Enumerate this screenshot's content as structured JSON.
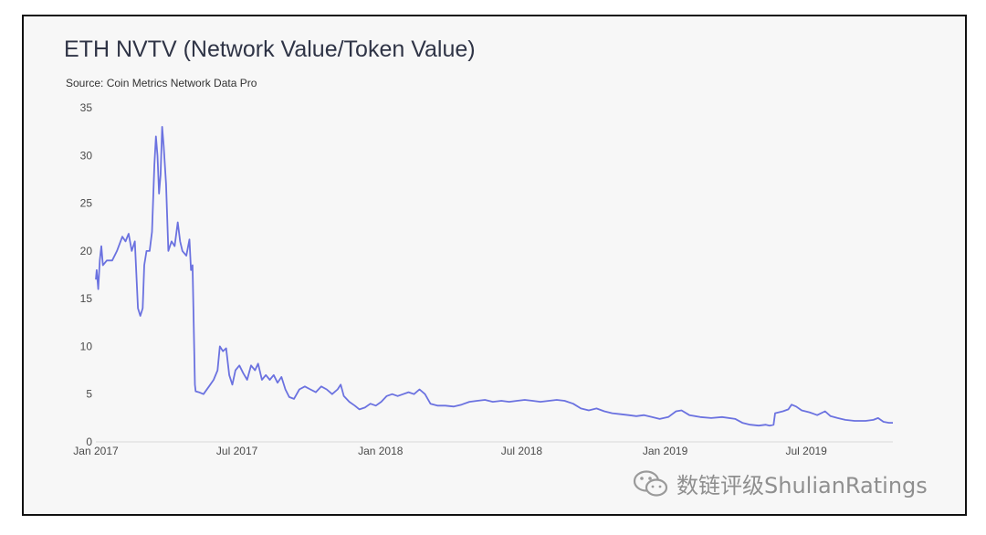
{
  "title": "ETH NVTV (Network Value/Token Value)",
  "source": "Source: Coin Metrics Network Data Pro",
  "watermark": "数链评级ShulianRatings",
  "colors": {
    "line": "#6b72e0",
    "axis": "#d8d8d8",
    "text": "#2f3446"
  },
  "icons": {
    "watermark": "wechat-icon"
  },
  "chart_data": {
    "type": "line",
    "title": "ETH NVTV (Network Value/Token Value)",
    "xlabel": "",
    "ylabel": "",
    "ylim": [
      0,
      35
    ],
    "xlim": [
      "2017-01-01",
      "2019-10-20"
    ],
    "y_ticks": [
      0,
      5,
      10,
      15,
      20,
      25,
      30,
      35
    ],
    "x_ticks": [
      {
        "date": "2017-01-01",
        "label": "Jan 2017"
      },
      {
        "date": "2017-07-01",
        "label": "Jul 2017"
      },
      {
        "date": "2018-01-01",
        "label": "Jan 2018"
      },
      {
        "date": "2018-07-01",
        "label": "Jul 2018"
      },
      {
        "date": "2019-01-01",
        "label": "Jan 2019"
      },
      {
        "date": "2019-07-01",
        "label": "Jul 2019"
      }
    ],
    "grid": false,
    "series": [
      {
        "color": "#6b72e0",
        "points": [
          [
            "2017-01-01",
            17
          ],
          [
            "2017-01-02",
            18
          ],
          [
            "2017-01-04",
            16
          ],
          [
            "2017-01-06",
            19
          ],
          [
            "2017-01-08",
            20.5
          ],
          [
            "2017-01-10",
            18.5
          ],
          [
            "2017-01-15",
            19
          ],
          [
            "2017-01-22",
            19
          ],
          [
            "2017-01-28",
            20
          ],
          [
            "2017-02-04",
            21.5
          ],
          [
            "2017-02-08",
            21
          ],
          [
            "2017-02-12",
            21.8
          ],
          [
            "2017-02-16",
            20
          ],
          [
            "2017-02-20",
            21
          ],
          [
            "2017-02-24",
            14
          ],
          [
            "2017-02-27",
            13.2
          ],
          [
            "2017-03-02",
            14
          ],
          [
            "2017-03-04",
            18.5
          ],
          [
            "2017-03-07",
            20
          ],
          [
            "2017-03-11",
            20
          ],
          [
            "2017-03-14",
            22
          ],
          [
            "2017-03-17",
            29
          ],
          [
            "2017-03-19",
            32
          ],
          [
            "2017-03-21",
            30
          ],
          [
            "2017-03-23",
            26
          ],
          [
            "2017-03-25",
            28
          ],
          [
            "2017-03-27",
            33
          ],
          [
            "2017-03-29",
            31
          ],
          [
            "2017-04-01",
            27
          ],
          [
            "2017-04-04",
            20
          ],
          [
            "2017-04-08",
            21
          ],
          [
            "2017-04-12",
            20.5
          ],
          [
            "2017-04-16",
            23
          ],
          [
            "2017-04-19",
            21
          ],
          [
            "2017-04-22",
            20
          ],
          [
            "2017-04-27",
            19.5
          ],
          [
            "2017-05-01",
            21.2
          ],
          [
            "2017-05-03",
            18
          ],
          [
            "2017-05-05",
            18.5
          ],
          [
            "2017-05-08",
            6
          ],
          [
            "2017-05-09",
            5.3
          ],
          [
            "2017-05-13",
            5.2
          ],
          [
            "2017-05-19",
            5.0
          ],
          [
            "2017-05-26",
            5.8
          ],
          [
            "2017-06-01",
            6.5
          ],
          [
            "2017-06-06",
            7.5
          ],
          [
            "2017-06-09",
            10
          ],
          [
            "2017-06-13",
            9.5
          ],
          [
            "2017-06-17",
            9.8
          ],
          [
            "2017-06-21",
            7
          ],
          [
            "2017-06-25",
            6
          ],
          [
            "2017-06-29",
            7.5
          ],
          [
            "2017-07-04",
            8
          ],
          [
            "2017-07-09",
            7.2
          ],
          [
            "2017-07-14",
            6.5
          ],
          [
            "2017-07-19",
            8
          ],
          [
            "2017-07-24",
            7.5
          ],
          [
            "2017-07-28",
            8.2
          ],
          [
            "2017-08-02",
            6.5
          ],
          [
            "2017-08-07",
            7
          ],
          [
            "2017-08-12",
            6.5
          ],
          [
            "2017-08-17",
            7
          ],
          [
            "2017-08-22",
            6.2
          ],
          [
            "2017-08-27",
            6.8
          ],
          [
            "2017-09-01",
            5.5
          ],
          [
            "2017-09-06",
            4.7
          ],
          [
            "2017-09-12",
            4.5
          ],
          [
            "2017-09-19",
            5.5
          ],
          [
            "2017-09-26",
            5.8
          ],
          [
            "2017-10-03",
            5.5
          ],
          [
            "2017-10-10",
            5.2
          ],
          [
            "2017-10-17",
            5.8
          ],
          [
            "2017-10-24",
            5.5
          ],
          [
            "2017-10-31",
            5.0
          ],
          [
            "2017-11-07",
            5.5
          ],
          [
            "2017-11-11",
            6
          ],
          [
            "2017-11-15",
            4.8
          ],
          [
            "2017-11-22",
            4.2
          ],
          [
            "2017-11-29",
            3.8
          ],
          [
            "2017-12-05",
            3.4
          ],
          [
            "2017-12-12",
            3.6
          ],
          [
            "2017-12-19",
            4.0
          ],
          [
            "2017-12-26",
            3.8
          ],
          [
            "2018-01-02",
            4.2
          ],
          [
            "2018-01-09",
            4.8
          ],
          [
            "2018-01-16",
            5
          ],
          [
            "2018-01-23",
            4.8
          ],
          [
            "2018-01-30",
            5.0
          ],
          [
            "2018-02-06",
            5.2
          ],
          [
            "2018-02-13",
            5.0
          ],
          [
            "2018-02-20",
            5.5
          ],
          [
            "2018-02-27",
            5.0
          ],
          [
            "2018-03-06",
            4
          ],
          [
            "2018-03-15",
            3.8
          ],
          [
            "2018-03-25",
            3.8
          ],
          [
            "2018-04-05",
            3.7
          ],
          [
            "2018-04-15",
            3.9
          ],
          [
            "2018-04-25",
            4.2
          ],
          [
            "2018-05-05",
            4.3
          ],
          [
            "2018-05-15",
            4.4
          ],
          [
            "2018-05-25",
            4.2
          ],
          [
            "2018-06-05",
            4.3
          ],
          [
            "2018-06-15",
            4.2
          ],
          [
            "2018-06-25",
            4.3
          ],
          [
            "2018-07-05",
            4.4
          ],
          [
            "2018-07-15",
            4.3
          ],
          [
            "2018-07-25",
            4.2
          ],
          [
            "2018-08-05",
            4.3
          ],
          [
            "2018-08-15",
            4.4
          ],
          [
            "2018-08-25",
            4.3
          ],
          [
            "2018-09-05",
            4.0
          ],
          [
            "2018-09-15",
            3.5
          ],
          [
            "2018-09-25",
            3.3
          ],
          [
            "2018-10-05",
            3.5
          ],
          [
            "2018-10-15",
            3.2
          ],
          [
            "2018-10-25",
            3.0
          ],
          [
            "2018-11-05",
            2.9
          ],
          [
            "2018-11-15",
            2.8
          ],
          [
            "2018-11-25",
            2.7
          ],
          [
            "2018-12-05",
            2.8
          ],
          [
            "2018-12-15",
            2.6
          ],
          [
            "2018-12-25",
            2.4
          ],
          [
            "2019-01-05",
            2.6
          ],
          [
            "2019-01-15",
            3.2
          ],
          [
            "2019-01-22",
            3.3
          ],
          [
            "2019-02-01",
            2.8
          ],
          [
            "2019-02-15",
            2.6
          ],
          [
            "2019-03-01",
            2.5
          ],
          [
            "2019-03-15",
            2.6
          ],
          [
            "2019-04-01",
            2.4
          ],
          [
            "2019-04-10",
            2.0
          ],
          [
            "2019-04-20",
            1.8
          ],
          [
            "2019-05-01",
            1.7
          ],
          [
            "2019-05-10",
            1.8
          ],
          [
            "2019-05-15",
            1.7
          ],
          [
            "2019-05-20",
            1.8
          ],
          [
            "2019-05-22",
            3.0
          ],
          [
            "2019-06-01",
            3.2
          ],
          [
            "2019-06-08",
            3.4
          ],
          [
            "2019-06-12",
            3.9
          ],
          [
            "2019-06-18",
            3.7
          ],
          [
            "2019-06-25",
            3.3
          ],
          [
            "2019-07-05",
            3.1
          ],
          [
            "2019-07-15",
            2.8
          ],
          [
            "2019-07-25",
            3.2
          ],
          [
            "2019-08-01",
            2.7
          ],
          [
            "2019-08-10",
            2.5
          ],
          [
            "2019-08-20",
            2.3
          ],
          [
            "2019-09-01",
            2.2
          ],
          [
            "2019-09-15",
            2.2
          ],
          [
            "2019-09-25",
            2.3
          ],
          [
            "2019-10-01",
            2.5
          ],
          [
            "2019-10-08",
            2.1
          ],
          [
            "2019-10-15",
            2.0
          ],
          [
            "2019-10-20",
            2.0
          ]
        ]
      }
    ]
  }
}
